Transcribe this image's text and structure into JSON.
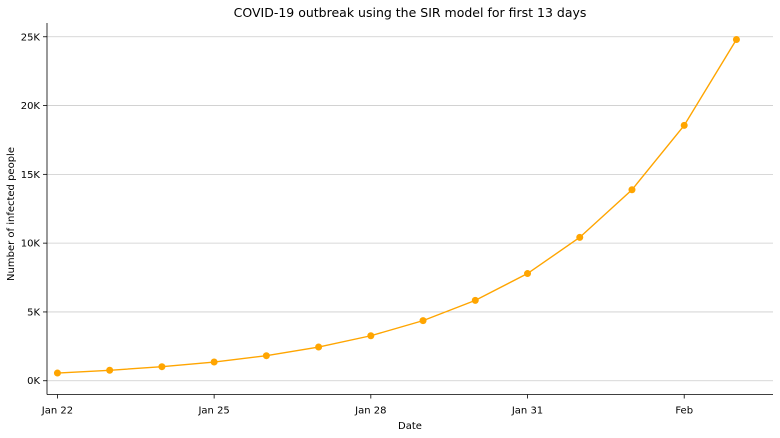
{
  "chart_data": {
    "type": "line",
    "title": "COVID-19 outbreak using the SIR model for first 13 days",
    "xlabel": "Date",
    "ylabel": "Number of infected people",
    "x": [
      "2020-01-22",
      "2020-01-23",
      "2020-01-24",
      "2020-01-25",
      "2020-01-26",
      "2020-01-27",
      "2020-01-28",
      "2020-01-29",
      "2020-01-30",
      "2020-01-31",
      "2020-02-01",
      "2020-02-02",
      "2020-02-03",
      "2020-02-04"
    ],
    "xlim": [
      "2020-01-21 19:12",
      "2020-02-04 16:48"
    ],
    "x_ticks": [
      {
        "value": "2020-01-22",
        "label": "Jan 22"
      },
      {
        "value": "2020-01-25",
        "label": "Jan 25"
      },
      {
        "value": "2020-01-28",
        "label": "Jan 28"
      },
      {
        "value": "2020-01-31",
        "label": "Jan 31"
      },
      {
        "value": "2020-02-03",
        "label": "Feb"
      }
    ],
    "ylim": [
      -1000,
      26000
    ],
    "y_ticks": [
      {
        "value": 0,
        "label": "0K"
      },
      {
        "value": 5000,
        "label": "5K"
      },
      {
        "value": 10000,
        "label": "10K"
      },
      {
        "value": 15000,
        "label": "15K"
      },
      {
        "value": 20000,
        "label": "20K"
      },
      {
        "value": 25000,
        "label": "25K"
      }
    ],
    "grid": "horizontal",
    "series": [
      {
        "color": "#FFA500",
        "marker": "circle",
        "values": [
          560,
          760,
          1020,
          1360,
          1820,
          2450,
          3270,
          4370,
          5840,
          7790,
          10420,
          13880,
          18560,
          24800
        ]
      }
    ]
  }
}
